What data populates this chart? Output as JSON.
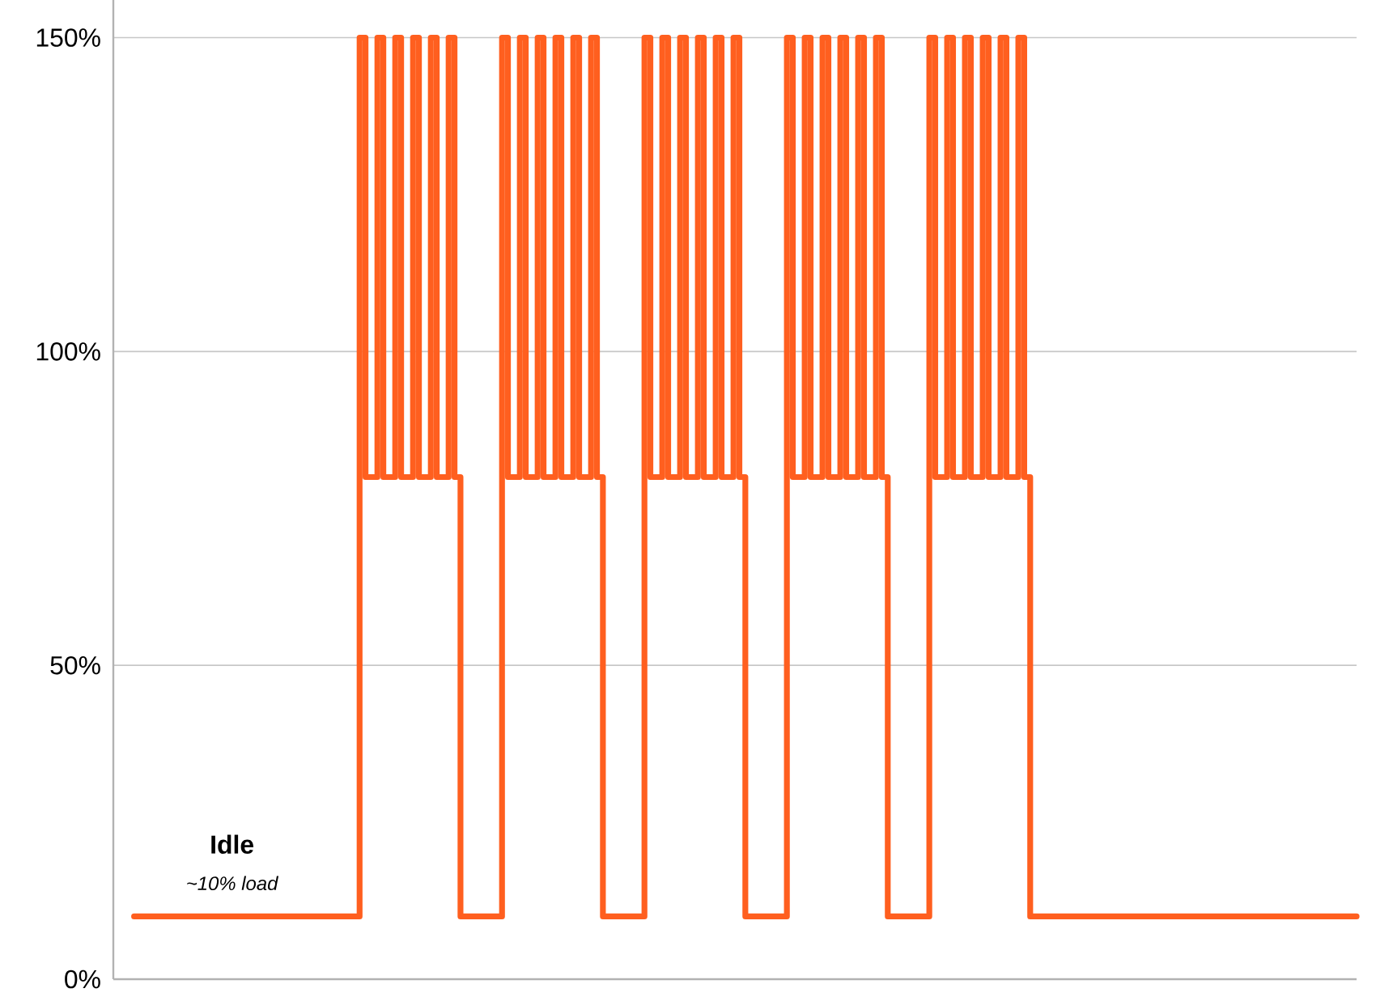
{
  "chart_data": {
    "type": "step",
    "categories": [
      null,
      null,
      null,
      null,
      null,
      null,
      null,
      null,
      null,
      null,
      null,
      null,
      null,
      null,
      null,
      null,
      null,
      null,
      null,
      null,
      null,
      null,
      null,
      null,
      null,
      null,
      null,
      null,
      null,
      null,
      null,
      null,
      null,
      null,
      null,
      null,
      null,
      null,
      null,
      null,
      null,
      null,
      null,
      null,
      null,
      null,
      null,
      null,
      null,
      null,
      null,
      null,
      null,
      null,
      null,
      null,
      null,
      null,
      null,
      null,
      null,
      null,
      null,
      null,
      null,
      null,
      null,
      null,
      null,
      null,
      null,
      null,
      null,
      null,
      null,
      null,
      null,
      null,
      null,
      null,
      null,
      null,
      null,
      null,
      null,
      null,
      null,
      null,
      null,
      null,
      null,
      null,
      null,
      null,
      null,
      null,
      null,
      null,
      null,
      null,
      null,
      null,
      null,
      null,
      null,
      null,
      null,
      null,
      null,
      null,
      null,
      null,
      null,
      null,
      null,
      null,
      null,
      null,
      null,
      null,
      null,
      null,
      null,
      null,
      null,
      null,
      null,
      null,
      null,
      null,
      null,
      null,
      null,
      null,
      null,
      null,
      null,
      null,
      null,
      null,
      null,
      null,
      null,
      null,
      null,
      null,
      null,
      null,
      null,
      null,
      null,
      null,
      null,
      null,
      null,
      null,
      null,
      null,
      null,
      null,
      null,
      null,
      null,
      null,
      null,
      null,
      null,
      null,
      null,
      null,
      null,
      null,
      null,
      null,
      null,
      null,
      null,
      null,
      null,
      null,
      null,
      null,
      null,
      null,
      null,
      null,
      null,
      null,
      null,
      null,
      null,
      null,
      null,
      null,
      null,
      null,
      null,
      null,
      null,
      null,
      null,
      null,
      null,
      null,
      null,
      null,
      null
    ],
    "values": [
      10,
      10,
      10,
      10,
      10,
      10,
      10,
      10,
      10,
      10,
      10,
      10,
      10,
      10,
      10,
      10,
      10,
      10,
      10,
      10,
      10,
      10,
      10,
      10,
      10,
      10,
      10,
      10,
      10,
      10,
      10,
      10,
      10,
      10,
      10,
      10,
      10,
      10,
      150,
      80,
      80,
      150,
      80,
      80,
      150,
      80,
      80,
      150,
      80,
      80,
      150,
      80,
      80,
      150,
      80,
      10,
      10,
      10,
      10,
      10,
      10,
      10,
      150,
      80,
      80,
      150,
      80,
      80,
      150,
      80,
      80,
      150,
      80,
      80,
      150,
      80,
      80,
      150,
      80,
      10,
      10,
      10,
      10,
      10,
      10,
      10,
      150,
      80,
      80,
      150,
      80,
      80,
      150,
      80,
      80,
      150,
      80,
      80,
      150,
      80,
      80,
      150,
      80,
      10,
      10,
      10,
      10,
      10,
      10,
      10,
      150,
      80,
      80,
      150,
      80,
      80,
      150,
      80,
      80,
      150,
      80,
      80,
      150,
      80,
      80,
      150,
      80,
      10,
      10,
      10,
      10,
      10,
      10,
      10,
      150,
      80,
      80,
      150,
      80,
      80,
      150,
      80,
      80,
      150,
      80,
      80,
      150,
      80,
      80,
      150,
      80,
      10,
      10,
      10,
      10,
      10,
      10,
      10,
      10,
      10,
      10,
      10,
      10,
      10,
      10,
      10,
      10,
      10,
      10,
      10,
      10,
      10,
      10,
      10,
      10,
      10,
      10,
      10,
      10,
      10,
      10,
      10,
      10,
      10,
      10,
      10,
      10,
      10,
      10,
      10,
      10,
      10,
      10,
      10,
      10,
      10,
      10,
      10,
      10,
      10,
      10,
      10,
      10,
      10,
      10,
      10,
      10
    ],
    "color": "#ff5f1f",
    "ylim": [
      0,
      156
    ],
    "yticks": [
      {
        "value": 0,
        "label": "0%"
      },
      {
        "value": 50,
        "label": "50%"
      },
      {
        "value": 100,
        "label": "100%"
      },
      {
        "value": 150,
        "label": "150%"
      }
    ],
    "grid": "y",
    "annotations": [
      "Idle",
      "~10% load"
    ]
  }
}
